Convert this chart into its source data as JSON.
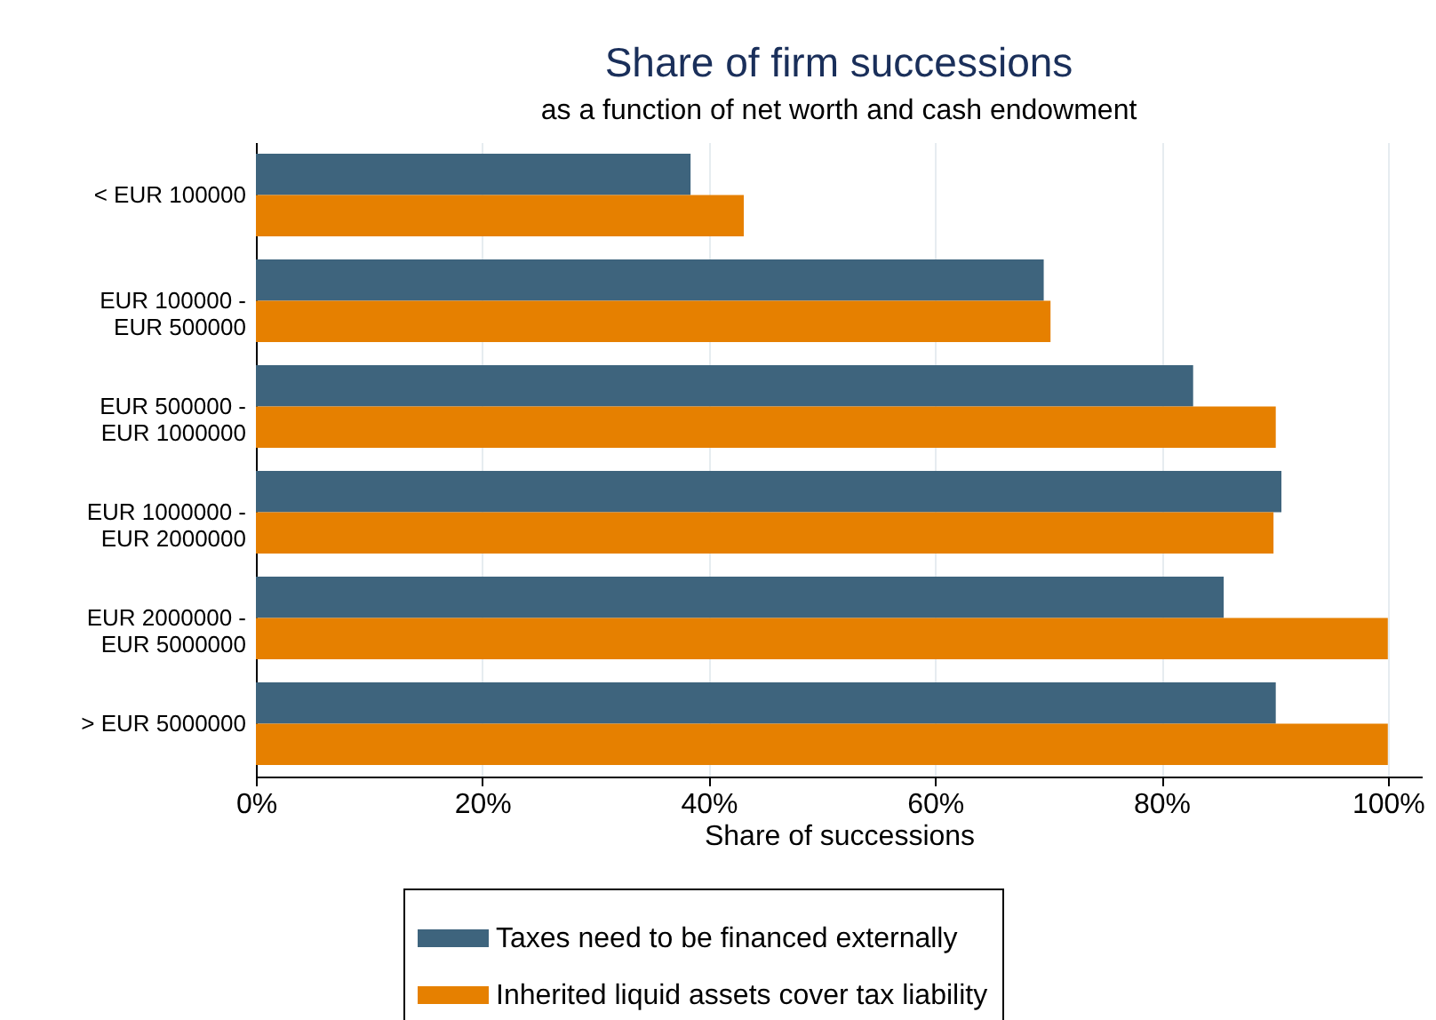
{
  "chart_data": {
    "type": "bar",
    "orientation": "horizontal",
    "title": "Share of firm successions",
    "subtitle": "as a function of net worth and cash endowment",
    "xlabel": "Share of successions",
    "categories": [
      "< EUR 100000",
      "EUR 100000 - EUR 500000",
      "EUR 500000 - EUR 1000000",
      "EUR 1000000 - EUR 2000000",
      "EUR 2000000 - EUR 5000000",
      "> EUR 5000000"
    ],
    "series": [
      {
        "name": "Taxes need to be financed externally",
        "color": "#3e647d",
        "values": [
          38.4,
          69.6,
          82.8,
          90.6,
          85.5,
          90.1
        ]
      },
      {
        "name": "Inherited liquid assets cover tax liability",
        "color": "#e68000",
        "values": [
          43.1,
          70.2,
          90.1,
          89.9,
          100,
          100
        ]
      }
    ],
    "xlim": [
      0,
      103
    ],
    "xticks": [
      {
        "value": 0,
        "label": "0%"
      },
      {
        "value": 20,
        "label": "20%"
      },
      {
        "value": 40,
        "label": "40%"
      },
      {
        "value": 60,
        "label": "60%"
      },
      {
        "value": 80,
        "label": "80%"
      },
      {
        "value": 100,
        "label": "100%"
      }
    ],
    "grid": "x",
    "legend": "bottom"
  }
}
